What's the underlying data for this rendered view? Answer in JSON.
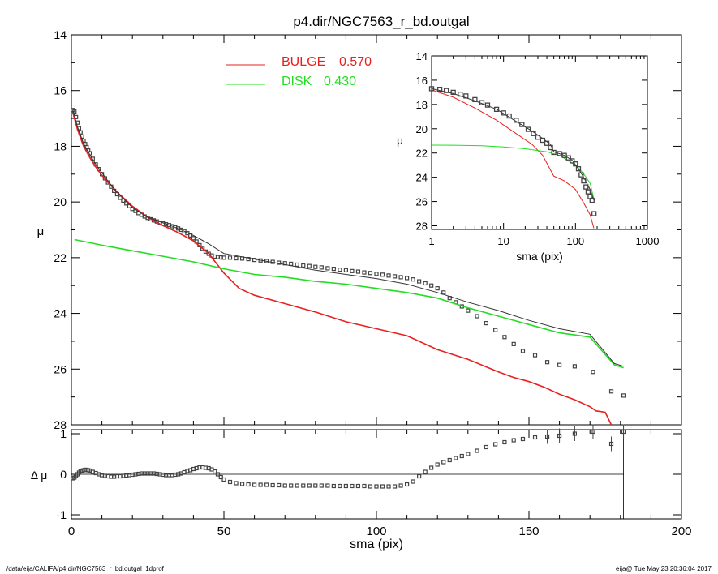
{
  "title": "p4.dir/NGC7563_r_bd.outgal",
  "footer": {
    "left": "/data/eija/CALIFA/p4.dir/NGC7563_r_bd.outgal_1dprof",
    "right": "eija@  Tue May 23 20:36:04 2017"
  },
  "colors": {
    "bulge": "#e8201e",
    "disk": "#22dd22",
    "total": "#333333",
    "points": "#444444"
  },
  "legend": [
    {
      "name": "BULGE",
      "value": "0.570",
      "color": "#e8201e"
    },
    {
      "name": "DISK",
      "value": "0.430",
      "color": "#22dd22"
    }
  ],
  "chart_data": [
    {
      "type": "line",
      "panel": "main",
      "xlabel": "",
      "ylabel": "μ",
      "xlim": [
        0,
        200
      ],
      "ylim": [
        28,
        14
      ],
      "yticks": [
        "14",
        "16",
        "18",
        "20",
        "22",
        "24",
        "26",
        "28"
      ],
      "series": [
        {
          "name": "BULGE",
          "x": [
            0.5,
            2,
            4,
            6,
            8,
            10,
            12,
            15,
            18,
            20,
            25,
            30,
            35,
            40,
            45,
            50,
            55,
            60,
            70,
            80,
            90,
            100,
            110,
            120,
            130,
            140,
            145,
            150,
            155,
            160,
            165,
            170,
            172,
            175,
            177
          ],
          "y": [
            16.8,
            17.4,
            18.0,
            18.4,
            18.75,
            19.05,
            19.3,
            19.65,
            19.95,
            20.15,
            20.55,
            20.85,
            21.1,
            21.4,
            21.85,
            22.55,
            23.1,
            23.35,
            23.65,
            23.95,
            24.3,
            24.55,
            24.8,
            25.3,
            25.65,
            26.1,
            26.3,
            26.45,
            26.65,
            26.9,
            27.1,
            27.35,
            27.5,
            27.55,
            28.0
          ]
        },
        {
          "name": "DISK",
          "x": [
            1,
            10,
            20,
            30,
            40,
            50,
            60,
            70,
            80,
            90,
            100,
            110,
            120,
            130,
            140,
            150,
            160,
            170,
            178,
            181
          ],
          "y": [
            21.35,
            21.55,
            21.75,
            21.95,
            22.15,
            22.4,
            22.6,
            22.7,
            22.85,
            22.95,
            23.1,
            23.25,
            23.45,
            23.8,
            24.1,
            24.4,
            24.7,
            24.85,
            25.85,
            25.95
          ]
        },
        {
          "name": "",
          "x": [
            0.5,
            2,
            4,
            6,
            8,
            10,
            12,
            15,
            20,
            25,
            30,
            35,
            40,
            45,
            50,
            60,
            70,
            80,
            90,
            100,
            110,
            120,
            130,
            140,
            150,
            160,
            170,
            178,
            181
          ],
          "y": [
            16.7,
            17.3,
            17.9,
            18.3,
            18.65,
            18.95,
            19.25,
            19.65,
            20.2,
            20.55,
            20.75,
            20.95,
            21.2,
            21.5,
            21.85,
            22.05,
            22.25,
            22.45,
            22.6,
            22.75,
            22.95,
            23.25,
            23.6,
            23.9,
            24.25,
            24.55,
            24.75,
            25.8,
            25.9
          ]
        }
      ],
      "points": {
        "x": [
          0.5,
          1,
          1.5,
          2,
          2.5,
          3,
          3.5,
          4,
          4.5,
          5,
          5.5,
          6,
          7,
          8,
          9,
          10,
          11,
          12,
          13,
          14,
          15,
          16,
          17,
          18,
          19,
          20,
          21,
          22,
          23,
          24,
          25,
          26,
          27,
          28,
          29,
          30,
          31,
          32,
          33,
          34,
          35,
          36,
          37,
          38,
          39,
          40,
          41,
          42,
          43,
          44,
          45,
          46,
          47,
          48,
          49,
          50,
          52,
          54,
          56,
          58,
          60,
          62,
          64,
          66,
          68,
          70,
          72,
          74,
          76,
          78,
          80,
          82,
          84,
          86,
          88,
          90,
          92,
          94,
          96,
          98,
          100,
          102,
          104,
          106,
          108,
          110,
          112,
          114,
          116,
          118,
          120,
          122,
          124,
          126,
          128,
          130,
          133,
          136,
          139,
          142,
          145,
          148,
          152,
          156,
          160,
          165,
          171,
          177,
          181
        ],
        "y": [
          16.7,
          16.75,
          16.95,
          17.15,
          17.35,
          17.5,
          17.65,
          17.8,
          17.92,
          18.03,
          18.15,
          18.25,
          18.45,
          18.65,
          18.82,
          19.0,
          19.15,
          19.3,
          19.45,
          19.6,
          19.72,
          19.85,
          19.95,
          20.05,
          20.15,
          20.25,
          20.32,
          20.4,
          20.46,
          20.52,
          20.57,
          20.62,
          20.66,
          20.7,
          20.74,
          20.77,
          20.8,
          20.83,
          20.87,
          20.91,
          20.95,
          21.0,
          21.05,
          21.12,
          21.2,
          21.3,
          21.42,
          21.55,
          21.68,
          21.78,
          21.86,
          21.92,
          21.96,
          21.98,
          21.99,
          22.0,
          22.0,
          22.02,
          22.03,
          22.05,
          22.08,
          22.1,
          22.12,
          22.15,
          22.18,
          22.2,
          22.22,
          22.25,
          22.28,
          22.3,
          22.33,
          22.35,
          22.38,
          22.4,
          22.43,
          22.45,
          22.48,
          22.5,
          22.53,
          22.55,
          22.58,
          22.61,
          22.64,
          22.67,
          22.7,
          22.73,
          22.78,
          22.85,
          22.92,
          23.0,
          23.1,
          23.25,
          23.45,
          23.6,
          23.75,
          23.9,
          24.1,
          24.35,
          24.6,
          24.85,
          25.1,
          25.35,
          25.5,
          25.75,
          25.85,
          25.9,
          26.1,
          26.8,
          26.95
        ]
      }
    },
    {
      "type": "scatter",
      "panel": "residual",
      "xlabel": "sma (pix)",
      "ylabel": "Δ μ",
      "xlim": [
        0,
        200
      ],
      "ylim": [
        -1.1,
        1.1
      ],
      "xticks": [
        "0",
        "50",
        "100",
        "150",
        "200"
      ],
      "yticks": [
        "1",
        "0",
        "-1"
      ],
      "points": {
        "x": [
          0.5,
          1,
          1.5,
          2,
          2.5,
          3,
          3.5,
          4,
          4.5,
          5,
          5.5,
          6,
          7,
          8,
          9,
          10,
          11,
          12,
          13,
          14,
          15,
          16,
          17,
          18,
          19,
          20,
          21,
          22,
          23,
          24,
          25,
          26,
          27,
          28,
          29,
          30,
          31,
          32,
          33,
          34,
          35,
          36,
          37,
          38,
          39,
          40,
          41,
          42,
          43,
          44,
          45,
          46,
          47,
          48,
          49,
          50,
          52,
          54,
          56,
          58,
          60,
          62,
          64,
          66,
          68,
          70,
          72,
          74,
          76,
          78,
          80,
          82,
          84,
          86,
          88,
          90,
          92,
          94,
          96,
          98,
          100,
          102,
          104,
          106,
          108,
          110,
          112,
          114,
          116,
          118,
          120,
          122,
          124,
          126,
          128,
          130,
          133,
          136,
          139,
          142,
          145,
          148,
          152,
          156,
          160,
          165,
          171,
          177,
          181
        ],
        "y": [
          -0.1,
          -0.08,
          -0.04,
          0.0,
          0.04,
          0.07,
          0.09,
          0.1,
          0.11,
          0.11,
          0.1,
          0.09,
          0.06,
          0.03,
          0.0,
          -0.02,
          -0.04,
          -0.05,
          -0.06,
          -0.06,
          -0.05,
          -0.05,
          -0.04,
          -0.03,
          -0.02,
          -0.01,
          0.0,
          0.01,
          0.02,
          0.02,
          0.02,
          0.02,
          0.02,
          0.01,
          0.0,
          -0.01,
          -0.02,
          -0.02,
          -0.02,
          -0.01,
          0.0,
          0.02,
          0.05,
          0.08,
          0.1,
          0.13,
          0.15,
          0.17,
          0.17,
          0.16,
          0.15,
          0.12,
          0.07,
          0.0,
          -0.07,
          -0.13,
          -0.19,
          -0.22,
          -0.24,
          -0.25,
          -0.26,
          -0.26,
          -0.26,
          -0.27,
          -0.27,
          -0.28,
          -0.28,
          -0.28,
          -0.28,
          -0.28,
          -0.28,
          -0.28,
          -0.28,
          -0.29,
          -0.29,
          -0.29,
          -0.29,
          -0.29,
          -0.29,
          -0.3,
          -0.3,
          -0.3,
          -0.3,
          -0.3,
          -0.28,
          -0.25,
          -0.18,
          -0.05,
          0.06,
          0.16,
          0.24,
          0.3,
          0.35,
          0.4,
          0.45,
          0.5,
          0.58,
          0.67,
          0.74,
          0.79,
          0.84,
          0.87,
          0.91,
          0.93,
          0.95,
          1.0,
          1.05,
          0.75,
          1.05
        ]
      }
    },
    {
      "type": "line",
      "panel": "inset",
      "xlabel": "sma (pix)",
      "ylabel": "μ",
      "xscale": "log",
      "xlim": [
        1,
        1000
      ],
      "ylim": [
        28.3,
        14
      ],
      "xticks": [
        "1",
        "10",
        "100",
        "1000"
      ],
      "yticks": [
        "14",
        "16",
        "18",
        "20",
        "22",
        "24",
        "26",
        "28"
      ],
      "series": [
        {
          "name": "BULGE",
          "x": [
            1,
            2,
            4,
            8,
            15,
            25,
            35,
            50,
            70,
            100,
            130,
            160,
            180
          ],
          "y": [
            16.8,
            17.4,
            18.3,
            19.3,
            20.4,
            21.3,
            22.2,
            23.9,
            24.3,
            25.0,
            26.1,
            27.1,
            28.2
          ]
        },
        {
          "name": "DISK",
          "x": [
            1,
            2,
            5,
            10,
            20,
            40,
            60,
            100,
            130,
            160,
            180
          ],
          "y": [
            21.35,
            21.36,
            21.4,
            21.5,
            21.65,
            21.9,
            22.2,
            23.0,
            23.7,
            24.5,
            25.8
          ]
        },
        {
          "name": "",
          "x": [
            1,
            2,
            4,
            8,
            15,
            25,
            35,
            45,
            50,
            70,
            90,
            110,
            130,
            160,
            180
          ],
          "y": [
            16.7,
            17.1,
            17.7,
            18.4,
            19.4,
            20.2,
            20.8,
            21.3,
            21.9,
            22.2,
            22.6,
            23.3,
            24.0,
            25.0,
            25.9
          ]
        }
      ],
      "points": {
        "x": [
          1,
          1.3,
          1.6,
          2,
          2.5,
          3,
          4,
          5,
          6,
          8,
          10,
          12,
          15,
          18,
          22,
          26,
          30,
          35,
          40,
          45,
          50,
          60,
          70,
          80,
          90,
          100,
          110,
          120,
          130,
          140,
          150,
          160,
          170,
          181
        ],
        "y": [
          16.7,
          16.75,
          16.85,
          17.0,
          17.15,
          17.3,
          17.6,
          17.85,
          18.05,
          18.4,
          18.7,
          18.95,
          19.3,
          19.65,
          20.05,
          20.4,
          20.7,
          20.95,
          21.2,
          21.55,
          21.95,
          22.05,
          22.2,
          22.4,
          22.65,
          22.9,
          23.3,
          23.8,
          24.3,
          24.8,
          25.2,
          25.6,
          25.9,
          27.0
        ]
      }
    }
  ]
}
